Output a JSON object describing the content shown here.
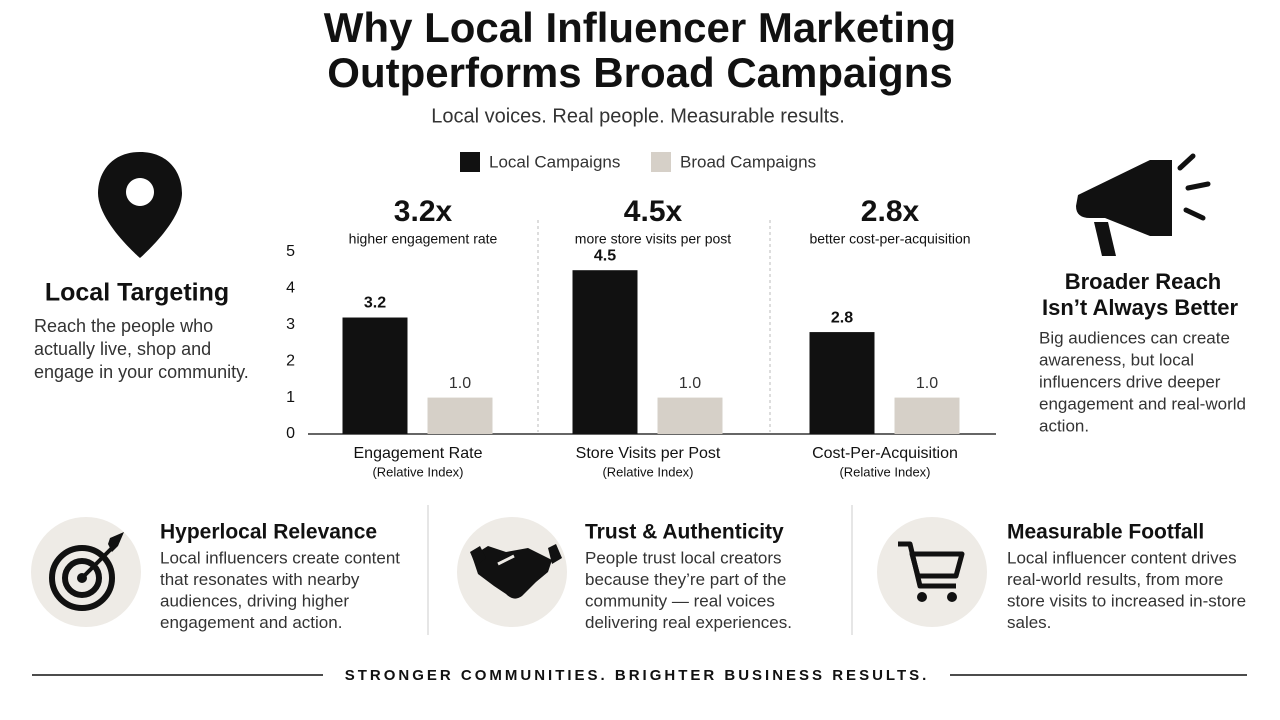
{
  "header": {
    "title": [
      "Why Local Influencer Marketing",
      "Outperforms Broad Campaigns"
    ],
    "subtitle": "Local voices. Real people. Measurable results."
  },
  "left_panel": {
    "title": "Local Targeting",
    "body": [
      "Reach the people who",
      "actually live, shop and",
      "engage in your community."
    ]
  },
  "right_panel": {
    "title": [
      "Broader Reach",
      "Isn’t Always Better"
    ],
    "body": [
      "Big audiences can create",
      "awareness, but local",
      "influencers drive deeper",
      "engagement and real-world",
      "action."
    ]
  },
  "chart_data": {
    "type": "bar",
    "categories": [
      "Engagement Rate",
      "Store Visits per Post",
      "Cost-Per-Acquisition"
    ],
    "category_notes": [
      "(Relative Index)",
      "(Relative Index)",
      "(Relative Index)"
    ],
    "highlights": [
      {
        "headline": "3.2x",
        "note": "higher engagement rate"
      },
      {
        "headline": "4.5x",
        "note": "more store visits per post"
      },
      {
        "headline": "2.8x",
        "note": "better cost-per-acquisition"
      }
    ],
    "series": [
      {
        "name": "Local Campaigns",
        "color": "#111111",
        "values": [
          3.2,
          4.5,
          2.8
        ]
      },
      {
        "name": "Broad Campaigns",
        "color": "#d6d0c8",
        "values": [
          1,
          1,
          1
        ],
        "value_labels": [
          "1.0",
          "1.0",
          "1.0"
        ]
      }
    ],
    "ylim": [
      0,
      5
    ],
    "yticks": [
      0,
      1,
      2,
      3,
      4,
      5
    ]
  },
  "features": [
    {
      "title": "Hyperlocal Relevance",
      "body": [
        "Local influencers create content",
        "that resonates with nearby",
        "audiences, driving higher",
        "engagement and action."
      ]
    },
    {
      "title": "Trust & Authenticity",
      "body": [
        "People trust local creators",
        "because they’re part of the",
        "community — real voices",
        "delivering real experiences."
      ]
    },
    {
      "title": "Measurable Footfall",
      "body": [
        "Local influencer content drives",
        "real-world results, from more",
        "store visits to increased in-store",
        "sales."
      ]
    }
  ],
  "footer": "STRONGER COMMUNITIES. BRIGHTER BUSINESS RESULTS."
}
